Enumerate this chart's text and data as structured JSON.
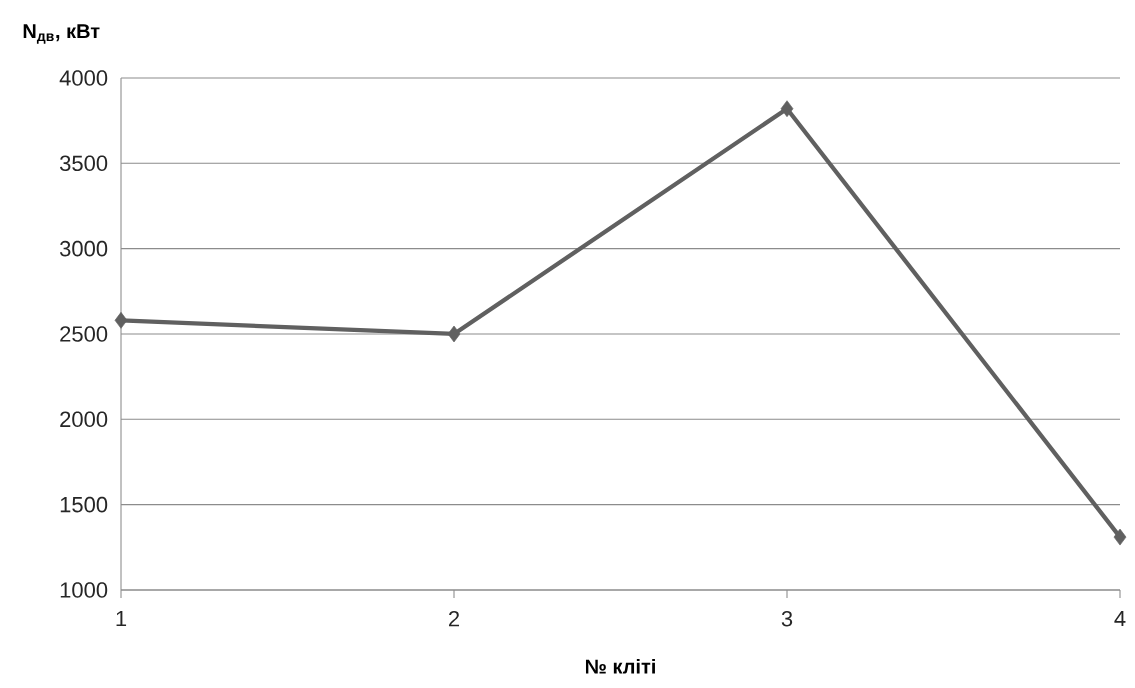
{
  "chart_data": {
    "type": "line",
    "xlabel": "№ кліті",
    "ylabel": "N$_{дв}$, кВт",
    "categories": [
      "1",
      "2",
      "3",
      "4"
    ],
    "series": [
      {
        "color": "#606060",
        "values": [
          2580,
          2500,
          3820,
          1310
        ]
      }
    ],
    "ylim": [
      1000,
      4000
    ],
    "yticks": [
      1000,
      1500,
      2000,
      2500,
      3000,
      3500,
      4000
    ],
    "grid": "y",
    "marker": "diamond",
    "line_style": "solid"
  }
}
